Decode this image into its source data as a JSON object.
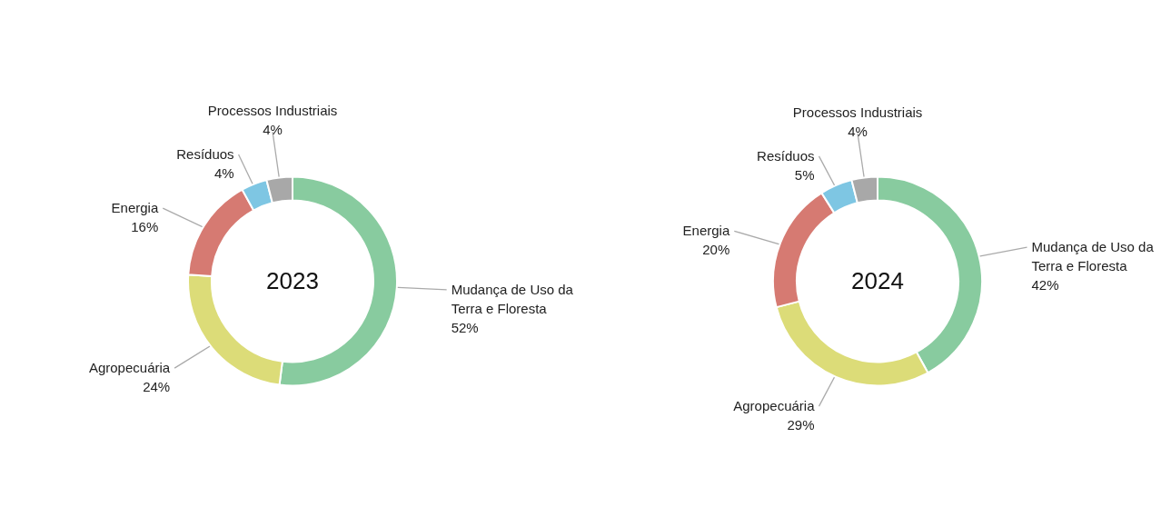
{
  "chart_data": [
    {
      "type": "donut",
      "title": "2023",
      "categories": [
        "Mudança de Uso da Terra e Floresta",
        "Agropecuária",
        "Energia",
        "Resíduos",
        "Processos Industriais"
      ],
      "values": [
        52,
        24,
        16,
        4,
        4
      ],
      "value_labels": [
        "52%",
        "24%",
        "16%",
        "4%",
        "4%"
      ],
      "colors": [
        "#88cb9f",
        "#dcdc78",
        "#d67a72",
        "#7ec6e3",
        "#a8a8a8"
      ]
    },
    {
      "type": "donut",
      "title": "2024",
      "categories": [
        "Mudança de Uso da Terra e Floresta",
        "Agropecuária",
        "Energia",
        "Resíduos",
        "Processos Industriais"
      ],
      "values": [
        42,
        29,
        20,
        5,
        4
      ],
      "value_labels": [
        "42%",
        "29%",
        "20%",
        "5%",
        "4%"
      ],
      "colors": [
        "#88cb9f",
        "#dcdc78",
        "#d67a72",
        "#7ec6e3",
        "#a8a8a8"
      ]
    }
  ]
}
